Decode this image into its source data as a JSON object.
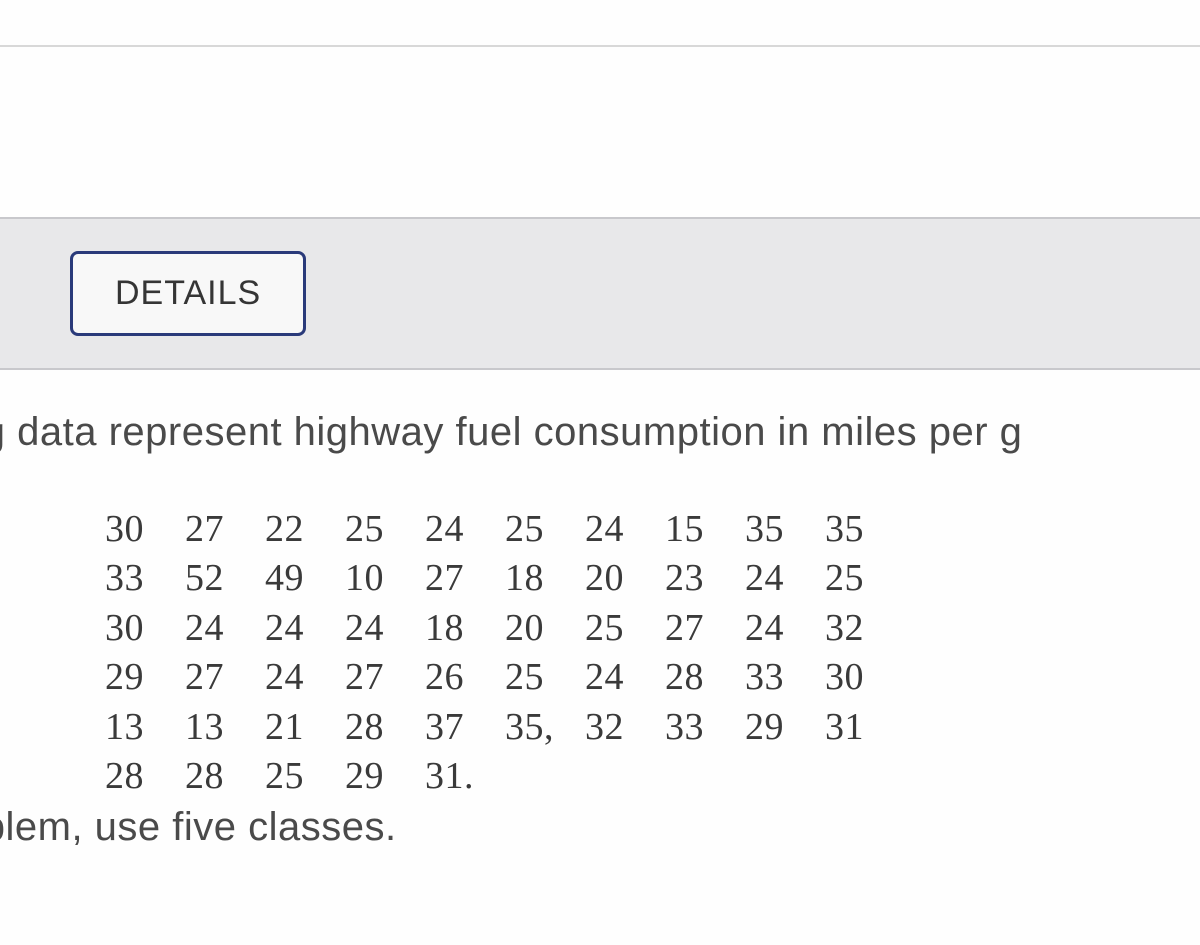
{
  "header": {
    "details_label": "DETAILS"
  },
  "content": {
    "description": "ng data represent highway fuel consumption in miles per g",
    "footer": "oblem, use five classes."
  },
  "data_grid": {
    "rows": [
      [
        "30",
        "27",
        "22",
        "25",
        "24",
        "25",
        "24",
        "15",
        "35",
        "35"
      ],
      [
        "33",
        "52",
        "49",
        "10",
        "27",
        "18",
        "20",
        "23",
        "24",
        "25"
      ],
      [
        "30",
        "24",
        "24",
        "24",
        "18",
        "20",
        "25",
        "27",
        "24",
        "32"
      ],
      [
        "29",
        "27",
        "24",
        "27",
        "26",
        "25",
        "24",
        "28",
        "33",
        "30"
      ],
      [
        "13",
        "13",
        "21",
        "28",
        "37",
        "35,",
        "32",
        "33",
        "29",
        "31"
      ],
      [
        "28",
        "28",
        "25",
        "29",
        "31."
      ]
    ]
  },
  "colors": {
    "background": "#fefefe",
    "header_bg": "#e8e8ea",
    "button_border": "#2a3a7a",
    "text_primary": "#4a4a4a",
    "text_data": "#3a3a3a"
  }
}
